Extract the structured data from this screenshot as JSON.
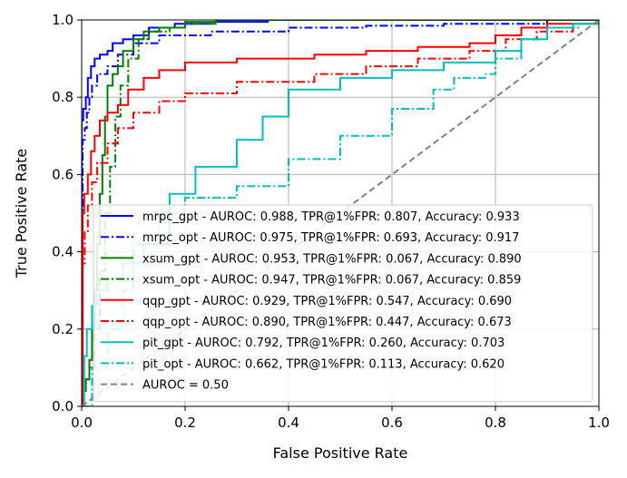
{
  "chart_data": {
    "type": "line",
    "title": "",
    "xlabel": "False Positive Rate",
    "ylabel": "True Positive Rate",
    "xlim": [
      0,
      1
    ],
    "ylim": [
      0,
      1
    ],
    "grid": true,
    "legend_position": "bottom-right",
    "x_ticks": [
      "0.0",
      "0.2",
      "0.4",
      "0.6",
      "0.8",
      "1.0"
    ],
    "y_ticks": [
      "0.0",
      "0.2",
      "0.4",
      "0.6",
      "0.8",
      "1.0"
    ],
    "series": [
      {
        "name": "mrpc_gpt - AUROC: 0.988, TPR@1%FPR: 0.807, Accuracy: 0.933",
        "color": "#0000ff",
        "dash": "solid",
        "points": [
          [
            0,
            0
          ],
          [
            0,
            0.74
          ],
          [
            0.003,
            0.77
          ],
          [
            0.008,
            0.8
          ],
          [
            0.012,
            0.85
          ],
          [
            0.018,
            0.88
          ],
          [
            0.025,
            0.9
          ],
          [
            0.035,
            0.91
          ],
          [
            0.05,
            0.92
          ],
          [
            0.06,
            0.94
          ],
          [
            0.08,
            0.95
          ],
          [
            0.1,
            0.96
          ],
          [
            0.13,
            0.98
          ],
          [
            0.18,
            0.99
          ],
          [
            0.25,
            0.995
          ],
          [
            0.36,
            1.0
          ],
          [
            1.0,
            1.0
          ]
        ]
      },
      {
        "name": "mrpc_opt - AUROC: 0.975, TPR@1%FPR: 0.693, Accuracy: 0.917",
        "color": "#0000ff",
        "dash": "dashdot",
        "points": [
          [
            0,
            0
          ],
          [
            0.002,
            0.69
          ],
          [
            0.006,
            0.72
          ],
          [
            0.01,
            0.76
          ],
          [
            0.015,
            0.8
          ],
          [
            0.02,
            0.83
          ],
          [
            0.03,
            0.86
          ],
          [
            0.05,
            0.88
          ],
          [
            0.07,
            0.91
          ],
          [
            0.1,
            0.94
          ],
          [
            0.15,
            0.96
          ],
          [
            0.25,
            0.97
          ],
          [
            0.4,
            0.98
          ],
          [
            0.55,
            0.985
          ],
          [
            0.7,
            0.99
          ],
          [
            0.9,
            1.0
          ],
          [
            1.0,
            1.0
          ]
        ]
      },
      {
        "name": "xsum_gpt - AUROC: 0.953, TPR@1%FPR: 0.067, Accuracy: 0.890",
        "color": "#008000",
        "dash": "solid",
        "points": [
          [
            0,
            0
          ],
          [
            0.002,
            0.05
          ],
          [
            0.008,
            0.07
          ],
          [
            0.015,
            0.12
          ],
          [
            0.02,
            0.2
          ],
          [
            0.025,
            0.3
          ],
          [
            0.03,
            0.42
          ],
          [
            0.035,
            0.55
          ],
          [
            0.04,
            0.65
          ],
          [
            0.045,
            0.75
          ],
          [
            0.05,
            0.83
          ],
          [
            0.06,
            0.86
          ],
          [
            0.07,
            0.88
          ],
          [
            0.08,
            0.92
          ],
          [
            0.1,
            0.95
          ],
          [
            0.12,
            0.97
          ],
          [
            0.15,
            0.98
          ],
          [
            0.2,
            0.995
          ],
          [
            0.26,
            1.0
          ],
          [
            1.0,
            1.0
          ]
        ]
      },
      {
        "name": "xsum_opt - AUROC: 0.947, TPR@1%FPR: 0.067, Accuracy: 0.859",
        "color": "#008000",
        "dash": "dashdot",
        "points": [
          [
            0,
            0
          ],
          [
            0.002,
            0.04
          ],
          [
            0.008,
            0.07
          ],
          [
            0.015,
            0.1
          ],
          [
            0.025,
            0.2
          ],
          [
            0.035,
            0.35
          ],
          [
            0.045,
            0.5
          ],
          [
            0.055,
            0.62
          ],
          [
            0.065,
            0.75
          ],
          [
            0.075,
            0.83
          ],
          [
            0.09,
            0.9
          ],
          [
            0.11,
            0.95
          ],
          [
            0.13,
            0.97
          ],
          [
            0.17,
            0.98
          ],
          [
            0.2,
            0.99
          ],
          [
            0.26,
            1.0
          ],
          [
            1.0,
            1.0
          ]
        ]
      },
      {
        "name": "qqp_gpt - AUROC: 0.929, TPR@1%FPR: 0.547, Accuracy: 0.690",
        "color": "#ff0000",
        "dash": "solid",
        "points": [
          [
            0,
            0
          ],
          [
            0.002,
            0.5
          ],
          [
            0.005,
            0.55
          ],
          [
            0.012,
            0.6
          ],
          [
            0.018,
            0.66
          ],
          [
            0.025,
            0.7
          ],
          [
            0.035,
            0.74
          ],
          [
            0.05,
            0.76
          ],
          [
            0.07,
            0.78
          ],
          [
            0.09,
            0.82
          ],
          [
            0.12,
            0.85
          ],
          [
            0.15,
            0.87
          ],
          [
            0.2,
            0.89
          ],
          [
            0.3,
            0.9
          ],
          [
            0.45,
            0.91
          ],
          [
            0.55,
            0.92
          ],
          [
            0.65,
            0.93
          ],
          [
            0.75,
            0.94
          ],
          [
            0.8,
            0.96
          ],
          [
            0.85,
            0.98
          ],
          [
            0.9,
            0.99
          ],
          [
            1.0,
            1.0
          ]
        ]
      },
      {
        "name": "qqp_opt - AUROC: 0.890, TPR@1%FPR: 0.447, Accuracy: 0.673",
        "color": "#ff0000",
        "dash": "dashdot",
        "points": [
          [
            0,
            0
          ],
          [
            0.002,
            0.37
          ],
          [
            0.006,
            0.45
          ],
          [
            0.012,
            0.52
          ],
          [
            0.02,
            0.58
          ],
          [
            0.03,
            0.63
          ],
          [
            0.05,
            0.68
          ],
          [
            0.07,
            0.72
          ],
          [
            0.1,
            0.76
          ],
          [
            0.15,
            0.79
          ],
          [
            0.2,
            0.81
          ],
          [
            0.3,
            0.84
          ],
          [
            0.45,
            0.86
          ],
          [
            0.55,
            0.88
          ],
          [
            0.65,
            0.9
          ],
          [
            0.75,
            0.92
          ],
          [
            0.82,
            0.95
          ],
          [
            0.88,
            0.97
          ],
          [
            0.95,
            0.99
          ],
          [
            1.0,
            1.0
          ]
        ]
      },
      {
        "name": "pit_gpt - AUROC: 0.792, TPR@1%FPR: 0.260, Accuracy: 0.703",
        "color": "#00bfbf",
        "dash": "solid",
        "points": [
          [
            0,
            0
          ],
          [
            0.005,
            0.13
          ],
          [
            0.01,
            0.2
          ],
          [
            0.02,
            0.26
          ],
          [
            0.03,
            0.3
          ],
          [
            0.05,
            0.33
          ],
          [
            0.08,
            0.37
          ],
          [
            0.12,
            0.42
          ],
          [
            0.17,
            0.55
          ],
          [
            0.22,
            0.62
          ],
          [
            0.3,
            0.69
          ],
          [
            0.35,
            0.75
          ],
          [
            0.4,
            0.82
          ],
          [
            0.5,
            0.85
          ],
          [
            0.6,
            0.87
          ],
          [
            0.7,
            0.89
          ],
          [
            0.8,
            0.92
          ],
          [
            0.85,
            0.95
          ],
          [
            0.9,
            0.98
          ],
          [
            0.95,
            0.99
          ],
          [
            1.0,
            1.0
          ]
        ]
      },
      {
        "name": "pit_opt - AUROC: 0.662, TPR@1%FPR: 0.113, Accuracy: 0.620",
        "color": "#00bfbf",
        "dash": "dashdot",
        "points": [
          [
            0,
            0
          ],
          [
            0.02,
            0.1
          ],
          [
            0.05,
            0.2
          ],
          [
            0.08,
            0.3
          ],
          [
            0.1,
            0.42
          ],
          [
            0.15,
            0.5
          ],
          [
            0.2,
            0.54
          ],
          [
            0.3,
            0.57
          ],
          [
            0.4,
            0.64
          ],
          [
            0.5,
            0.7
          ],
          [
            0.6,
            0.77
          ],
          [
            0.68,
            0.82
          ],
          [
            0.72,
            0.85
          ],
          [
            0.78,
            0.86
          ],
          [
            0.8,
            0.9
          ],
          [
            0.85,
            0.95
          ],
          [
            0.9,
            0.98
          ],
          [
            0.96,
            0.99
          ],
          [
            1.0,
            1.0
          ]
        ]
      },
      {
        "name": "AUROC = 0.50",
        "color": "#808080",
        "dash": "dashed",
        "points": [
          [
            0,
            0
          ],
          [
            1,
            1
          ]
        ]
      }
    ]
  }
}
